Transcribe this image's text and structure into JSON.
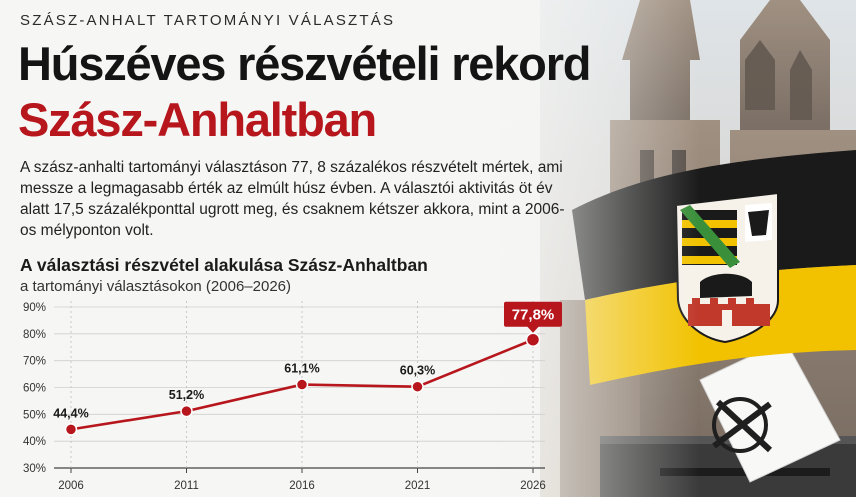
{
  "kicker": "SZÁSZ-ANHALT TARTOMÁNYI VÁLASZTÁS",
  "headline": {
    "line1": "Húszéves részvételi rekord",
    "line2": "Szász-Anhaltban"
  },
  "lede": "A szász-anhalti tartományi választáson 77, 8 százalékos részvételt mértek, ami messze a legmagasabb érték az elmúlt húsz évben. A választói aktivitás öt év alatt 17,5 százalékponttal ugrott meg, és csaknem kétszer akkora, mint a 2006-os mélyponton volt.",
  "colors": {
    "accent": "#b6161c",
    "flag_black": "#1a1a1a",
    "flag_yellow": "#f2c200",
    "text": "#141414"
  },
  "chart_data": {
    "type": "line",
    "title": "A választási részvétel alakulása Szász-Anhaltban",
    "subtitle": "a tartományi választásokon (2006–2026)",
    "x": [
      "2006",
      "2011",
      "2016",
      "2021",
      "2026"
    ],
    "values": [
      44.4,
      51.2,
      61.1,
      60.3,
      77.8
    ],
    "data_labels": [
      "44,4%",
      "51,2%",
      "61,1%",
      "60,3%",
      "77,8%"
    ],
    "ylim": [
      30,
      90
    ],
    "yticks": [
      30,
      40,
      50,
      60,
      70,
      80,
      90
    ],
    "ytick_labels": [
      "30%",
      "40%",
      "50%",
      "60%",
      "70%",
      "80%",
      "90%"
    ],
    "grid": true,
    "highlight_last": true,
    "line_color": "#b6161c"
  },
  "icons": [
    "cathedral-silhouette",
    "saxony-anhalt-flag",
    "coat-of-arms-emblem",
    "ballot-paper-with-cross",
    "ballot-box"
  ]
}
